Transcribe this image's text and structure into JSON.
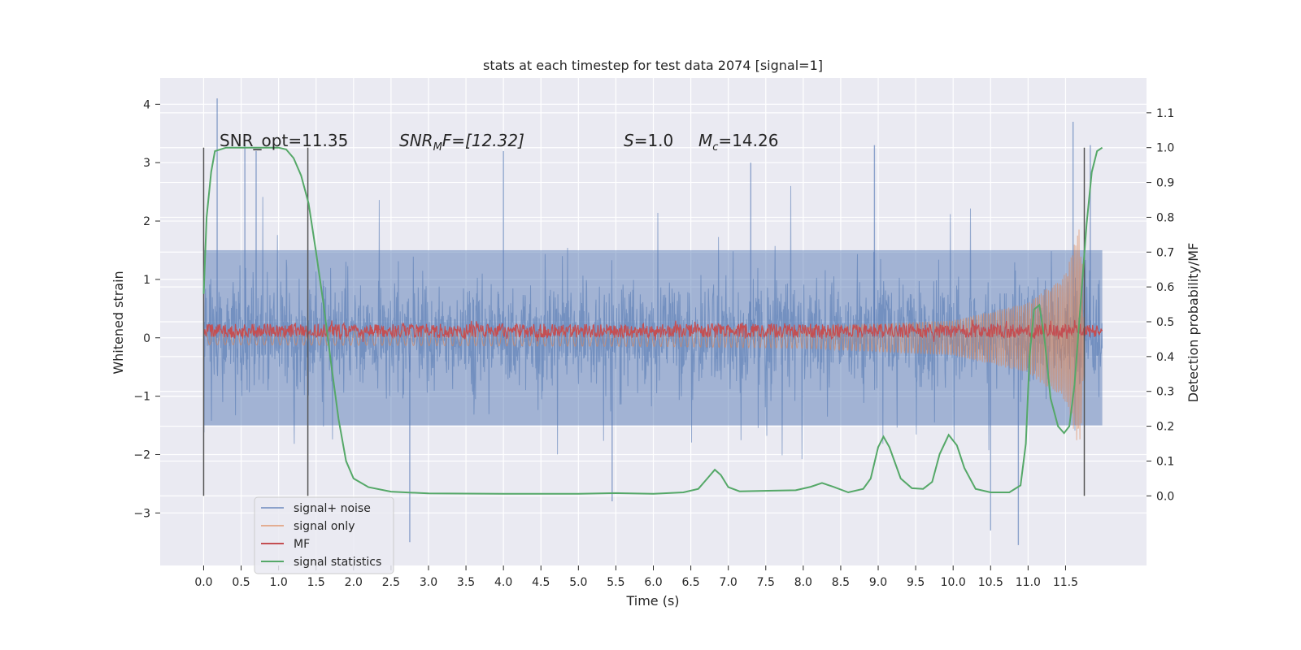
{
  "chart_data": {
    "type": "line",
    "title": "stats at each timestep for test data 2074 [signal=1]",
    "xlabel": "Time (s)",
    "ylabel_left": "Whitened strain",
    "ylabel_right": "Detection probability/MF",
    "xlim": [
      -0.58,
      12.58
    ],
    "ylim_left": [
      -3.9,
      4.45
    ],
    "ylim_right": [
      -0.2,
      1.2
    ],
    "x_ticks": [
      0.0,
      0.5,
      1.0,
      1.5,
      2.0,
      2.5,
      3.0,
      3.5,
      4.0,
      4.5,
      5.0,
      5.5,
      6.0,
      6.5,
      7.0,
      7.5,
      8.0,
      8.5,
      9.0,
      9.5,
      10.0,
      10.5,
      11.0,
      11.5
    ],
    "x_tick_labels": [
      "0.0",
      "0.5",
      "1.0",
      "1.5",
      "2.0",
      "2.5",
      "3.0",
      "3.5",
      "4.0",
      "4.5",
      "5.0",
      "5.5",
      "6.0",
      "6.5",
      "7.0",
      "7.5",
      "8.0",
      "8.5",
      "9.0",
      "9.5",
      "10.0",
      "10.5",
      "11.0",
      "11.5"
    ],
    "y_left_ticks": [
      4,
      3,
      2,
      1,
      0,
      -1,
      -2,
      -3
    ],
    "y_left_tick_labels": [
      "4",
      "3",
      "2",
      "1",
      "0",
      "−1",
      "−2",
      "−3"
    ],
    "y_right_ticks": [
      1.1,
      1.0,
      0.9,
      0.8,
      0.7,
      0.6,
      0.5,
      0.4,
      0.3,
      0.2,
      0.1,
      0.0
    ],
    "y_right_tick_labels": [
      "1.1",
      "1.0",
      "0.9",
      "0.8",
      "0.7",
      "0.6",
      "0.5",
      "0.4",
      "0.3",
      "0.2",
      "0.1",
      "0.0"
    ],
    "grid": true,
    "legend_position": "lower-left",
    "annotations": {
      "snr_opt": "SNR_opt=11.35",
      "snr_mf_main": "SNR",
      "snr_mf_sub": "M",
      "snr_mf_tail": "F=[12.32]",
      "s_main": "S",
      "s_tail": "=1.0",
      "mc_main": "M",
      "mc_sub": "c",
      "mc_tail": "=14.26"
    },
    "vertical_markers": [
      {
        "x": 0.0,
        "y_range": [
          0.0,
          1.0
        ]
      },
      {
        "x": 1.39,
        "y_range": [
          0.0,
          1.0
        ]
      },
      {
        "x": 11.75,
        "y_range": [
          0.0,
          1.0
        ]
      }
    ],
    "series": [
      {
        "name": "signal+ noise",
        "color": "#4c72b0",
        "axis": "left",
        "style": "noise",
        "x_range": [
          0.0,
          11.99
        ],
        "typical_range": [
          -1.5,
          1.5
        ],
        "peak_values": [
          {
            "x": 0.18,
            "y": 4.1
          },
          {
            "x": 0.55,
            "y": 3.3
          },
          {
            "x": 0.7,
            "y": 3.2
          },
          {
            "x": 2.75,
            "y": -3.5
          },
          {
            "x": 4.0,
            "y": 3.2
          },
          {
            "x": 5.45,
            "y": -2.8
          },
          {
            "x": 7.3,
            "y": 3.0
          },
          {
            "x": 8.95,
            "y": 3.3
          },
          {
            "x": 10.5,
            "y": -3.3
          },
          {
            "x": 10.87,
            "y": -3.55
          },
          {
            "x": 11.6,
            "y": 3.7
          },
          {
            "x": 11.83,
            "y": 3.3
          }
        ]
      },
      {
        "name": "signal only",
        "color": "#dd8452",
        "axis": "left",
        "style": "chirp",
        "x_range": [
          0.0,
          11.75
        ],
        "amplitude_points": [
          [
            0.0,
            0.12
          ],
          [
            6.0,
            0.15
          ],
          [
            8.0,
            0.18
          ],
          [
            10.0,
            0.3
          ],
          [
            11.0,
            0.6
          ],
          [
            11.5,
            1.1
          ],
          [
            11.68,
            1.9
          ],
          [
            11.72,
            1.4
          ],
          [
            11.75,
            0.0
          ]
        ]
      },
      {
        "name": "MF",
        "color": "#c44e52",
        "axis": "left",
        "style": "band",
        "x_range": [
          0.0,
          11.99
        ],
        "band": [
          0.0,
          0.24
        ],
        "center": 0.12
      },
      {
        "name": "signal statistics",
        "color": "#55a868",
        "axis": "right",
        "style": "line",
        "points": [
          [
            0.0,
            0.58
          ],
          [
            0.04,
            0.8
          ],
          [
            0.1,
            0.93
          ],
          [
            0.15,
            0.99
          ],
          [
            0.3,
            1.0
          ],
          [
            1.0,
            1.0
          ],
          [
            1.1,
            0.995
          ],
          [
            1.2,
            0.97
          ],
          [
            1.3,
            0.92
          ],
          [
            1.4,
            0.84
          ],
          [
            1.5,
            0.7
          ],
          [
            1.6,
            0.55
          ],
          [
            1.7,
            0.38
          ],
          [
            1.8,
            0.22
          ],
          [
            1.9,
            0.1
          ],
          [
            2.0,
            0.05
          ],
          [
            2.2,
            0.025
          ],
          [
            2.5,
            0.012
          ],
          [
            3.0,
            0.007
          ],
          [
            4.0,
            0.006
          ],
          [
            5.0,
            0.006
          ],
          [
            5.5,
            0.008
          ],
          [
            6.0,
            0.006
          ],
          [
            6.4,
            0.01
          ],
          [
            6.6,
            0.02
          ],
          [
            6.72,
            0.05
          ],
          [
            6.82,
            0.075
          ],
          [
            6.9,
            0.06
          ],
          [
            7.0,
            0.025
          ],
          [
            7.15,
            0.013
          ],
          [
            7.6,
            0.015
          ],
          [
            7.9,
            0.016
          ],
          [
            8.1,
            0.026
          ],
          [
            8.25,
            0.037
          ],
          [
            8.4,
            0.026
          ],
          [
            8.6,
            0.01
          ],
          [
            8.8,
            0.02
          ],
          [
            8.9,
            0.05
          ],
          [
            9.0,
            0.14
          ],
          [
            9.07,
            0.17
          ],
          [
            9.15,
            0.14
          ],
          [
            9.3,
            0.05
          ],
          [
            9.45,
            0.022
          ],
          [
            9.6,
            0.02
          ],
          [
            9.72,
            0.04
          ],
          [
            9.82,
            0.12
          ],
          [
            9.94,
            0.175
          ],
          [
            10.05,
            0.145
          ],
          [
            10.15,
            0.08
          ],
          [
            10.3,
            0.02
          ],
          [
            10.5,
            0.01
          ],
          [
            10.75,
            0.01
          ],
          [
            10.9,
            0.03
          ],
          [
            10.97,
            0.15
          ],
          [
            11.02,
            0.4
          ],
          [
            11.08,
            0.535
          ],
          [
            11.15,
            0.548
          ],
          [
            11.22,
            0.45
          ],
          [
            11.3,
            0.28
          ],
          [
            11.4,
            0.2
          ],
          [
            11.48,
            0.18
          ],
          [
            11.55,
            0.2
          ],
          [
            11.62,
            0.32
          ],
          [
            11.7,
            0.55
          ],
          [
            11.78,
            0.78
          ],
          [
            11.85,
            0.93
          ],
          [
            11.92,
            0.99
          ],
          [
            11.99,
            1.0
          ]
        ]
      }
    ]
  }
}
